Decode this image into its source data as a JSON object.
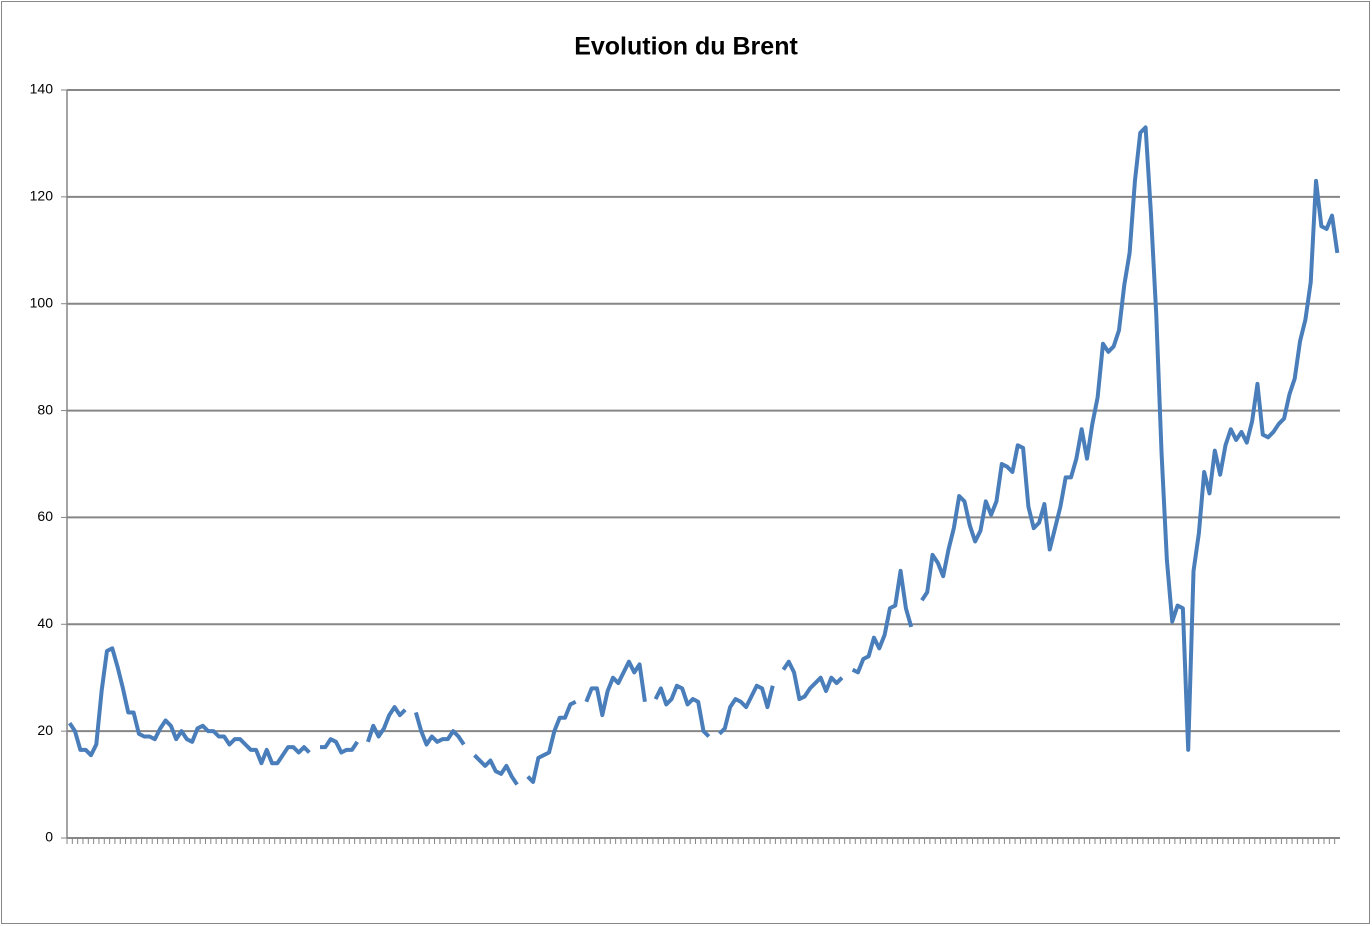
{
  "chart_data": {
    "type": "line",
    "title": "Evolution du Brent",
    "categories": [
      null,
      null,
      null,
      null,
      null,
      null,
      null,
      null,
      null,
      null,
      null,
      null,
      null,
      null,
      null,
      null,
      null,
      null,
      null,
      null,
      null,
      null,
      null,
      null,
      null,
      null,
      null,
      null,
      null,
      null,
      null,
      null,
      null,
      null,
      null,
      null,
      null,
      null,
      null,
      null,
      null,
      null,
      null,
      null,
      null,
      null,
      null,
      null,
      null,
      null,
      null,
      null,
      null,
      null,
      null,
      null,
      null,
      null,
      null,
      null,
      null,
      null,
      null,
      null,
      null,
      null,
      null,
      null,
      null,
      null,
      null,
      null,
      null,
      null,
      null,
      null,
      null,
      null,
      null,
      null,
      null,
      null,
      null,
      null,
      null,
      null,
      null,
      null,
      null,
      null,
      null,
      null,
      null,
      null,
      null,
      null,
      null,
      null,
      null,
      null,
      null,
      null,
      null,
      null,
      null,
      null,
      null,
      null,
      null,
      null,
      null,
      null,
      null,
      null,
      null,
      null,
      null,
      null,
      null,
      null,
      null,
      null,
      null,
      null,
      null,
      null,
      null,
      null,
      null,
      null,
      null,
      null,
      null,
      null,
      null,
      null,
      null,
      null,
      null,
      null,
      null,
      null,
      null,
      null,
      null,
      null,
      null,
      null,
      null,
      null,
      null,
      null,
      null,
      null,
      null,
      null,
      null,
      null,
      null,
      null,
      null,
      null,
      null,
      null,
      null,
      null,
      null,
      null,
      null,
      null,
      null,
      null,
      null,
      null,
      null,
      null,
      null,
      null,
      null,
      null,
      null,
      null,
      null,
      null,
      null,
      null,
      null,
      null,
      null,
      null,
      null,
      null,
      null,
      null,
      null,
      null,
      null,
      null,
      null,
      null,
      null,
      null,
      null,
      null,
      null,
      null,
      null,
      null,
      null,
      null,
      null,
      null,
      null,
      null,
      null,
      null,
      null,
      null,
      null,
      null,
      null,
      null,
      null,
      null,
      null,
      null,
      null,
      null,
      null,
      null,
      null,
      null,
      null,
      null,
      null,
      null,
      null,
      null,
      null
    ],
    "series": [
      {
        "name": "Brent",
        "color": "#4a7ebb",
        "values": [
          21.5,
          20,
          16.5,
          16.5,
          15.5,
          17.5,
          27.5,
          35,
          35.5,
          32,
          28,
          23.5,
          23.5,
          19.5,
          19,
          19,
          18.5,
          20.5,
          22,
          21,
          18.5,
          20,
          18.5,
          18,
          20.5,
          21,
          20,
          20,
          19,
          19,
          17.5,
          18.5,
          18.5,
          17.5,
          16.5,
          16.5,
          14,
          16.5,
          14,
          14,
          15.5,
          17,
          17,
          16,
          17,
          16,
          null,
          17,
          17,
          18.5,
          18,
          16,
          16.5,
          16.5,
          18,
          null,
          18,
          21,
          19,
          20.5,
          23,
          24.5,
          23,
          24,
          null,
          23.5,
          20,
          17.5,
          19,
          18,
          18.5,
          18.5,
          20,
          19,
          17.5,
          null,
          15.5,
          14.5,
          13.5,
          14.5,
          12.5,
          12,
          13.5,
          11.5,
          10,
          null,
          11.5,
          10.5,
          15,
          15.5,
          16,
          20,
          22.5,
          22.5,
          25,
          25.5,
          null,
          25.5,
          28,
          28,
          23,
          27.5,
          30,
          29,
          31,
          33,
          31,
          32.5,
          25.5,
          null,
          26,
          28,
          25,
          26,
          28.5,
          28,
          25,
          26,
          25.5,
          20,
          19,
          null,
          19.5,
          20.5,
          24.5,
          26,
          25.5,
          24.5,
          26.5,
          28.5,
          28,
          24.5,
          28.5,
          null,
          31.5,
          33,
          31,
          26,
          26.5,
          28,
          29,
          30,
          27.5,
          30,
          29,
          30,
          null,
          31.5,
          31,
          33.5,
          34,
          37.5,
          35.5,
          38,
          43,
          43.5,
          50,
          43,
          39.5,
          null,
          44.5,
          46,
          53,
          51.5,
          49,
          54,
          58,
          64,
          63,
          58.5,
          55.5,
          57.5,
          63,
          60.5,
          63,
          70,
          69.5,
          68.5,
          73.5,
          73,
          62,
          58,
          59,
          62.5,
          54,
          58,
          62,
          67.5,
          67.5,
          71,
          76.5,
          71,
          77.5,
          82.5,
          92.5,
          91,
          92,
          95,
          103.5,
          109.5,
          123,
          132,
          133,
          117,
          98,
          72,
          52,
          40.5,
          43.5,
          43,
          16.5,
          50,
          57,
          68.5,
          64.5,
          72.5,
          68,
          73.5,
          76.5,
          74.5,
          76,
          74,
          78,
          85,
          75.5,
          75,
          76,
          77.5,
          78.5,
          83,
          86,
          93,
          97,
          104,
          123,
          114.5,
          114,
          116.5,
          109.5
        ]
      }
    ],
    "ylim": [
      0,
      140
    ],
    "yticks": [
      0,
      20,
      40,
      60,
      80,
      100,
      120,
      140
    ],
    "grid": true
  }
}
